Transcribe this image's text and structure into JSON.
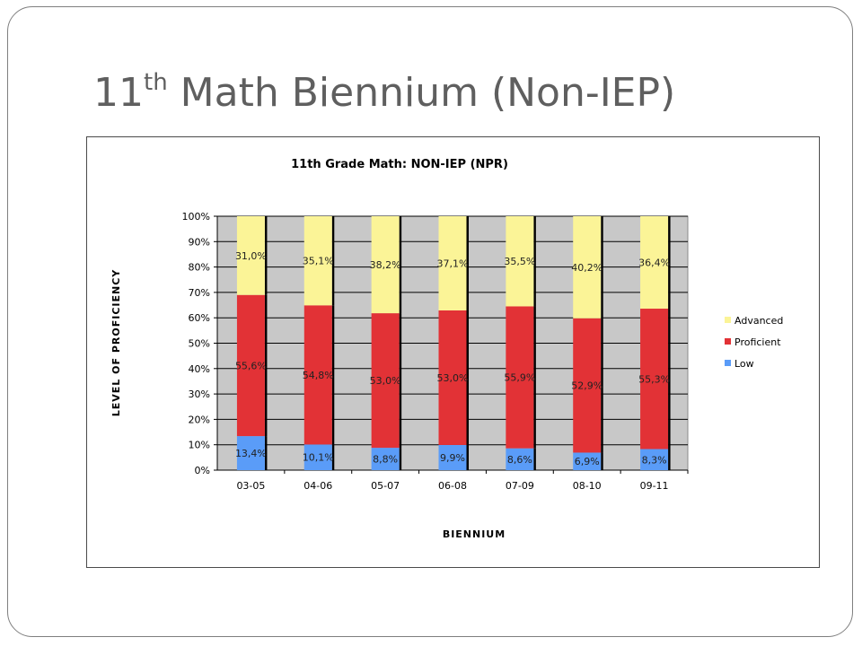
{
  "slide": {
    "title_main": "11",
    "title_sup": "th",
    "title_rest": " Math Biennium (Non-IEP)"
  },
  "chart_data": {
    "type": "bar",
    "stacked": true,
    "percent_stacked": true,
    "title": "11th Grade Math:  NON-IEP (NPR)",
    "xlabel": "BIENNIUM",
    "ylabel": "LEVEL OF PROFICIENCY",
    "ylim": [
      0,
      100
    ],
    "y_ticks": [
      "0%",
      "10%",
      "20%",
      "30%",
      "40%",
      "50%",
      "60%",
      "70%",
      "80%",
      "90%",
      "100%"
    ],
    "grid": true,
    "legend_position": "right",
    "categories": [
      "03-05",
      "04-06",
      "05-07",
      "06-08",
      "07-09",
      "08-10",
      "09-11"
    ],
    "series": [
      {
        "name": "Low",
        "color": "#5a9cf8",
        "values": [
          13.4,
          10.1,
          8.8,
          9.9,
          8.6,
          6.9,
          8.3
        ],
        "labels": [
          "13,4%",
          "10,1%",
          "8,8%",
          "9,9%",
          "8,6%",
          "6,9%",
          "8,3%"
        ]
      },
      {
        "name": "Proficient",
        "color": "#e23236",
        "values": [
          55.6,
          54.8,
          53.0,
          53.0,
          55.9,
          52.9,
          55.3
        ],
        "labels": [
          "55,6%",
          "54,8%",
          "53,0%",
          "53,0%",
          "55,9%",
          "52,9%",
          "55,3%"
        ]
      },
      {
        "name": "Advanced",
        "color": "#fbf497",
        "values": [
          31.0,
          35.1,
          38.2,
          37.1,
          35.5,
          40.2,
          36.4
        ],
        "labels": [
          "31,0%",
          "35,1%",
          "38,2%",
          "37,1%",
          "35,5%",
          "40,2%",
          "36,4%"
        ]
      }
    ],
    "legend_order": [
      "Advanced",
      "Proficient",
      "Low"
    ],
    "plot_background": "#c8c8c8"
  }
}
